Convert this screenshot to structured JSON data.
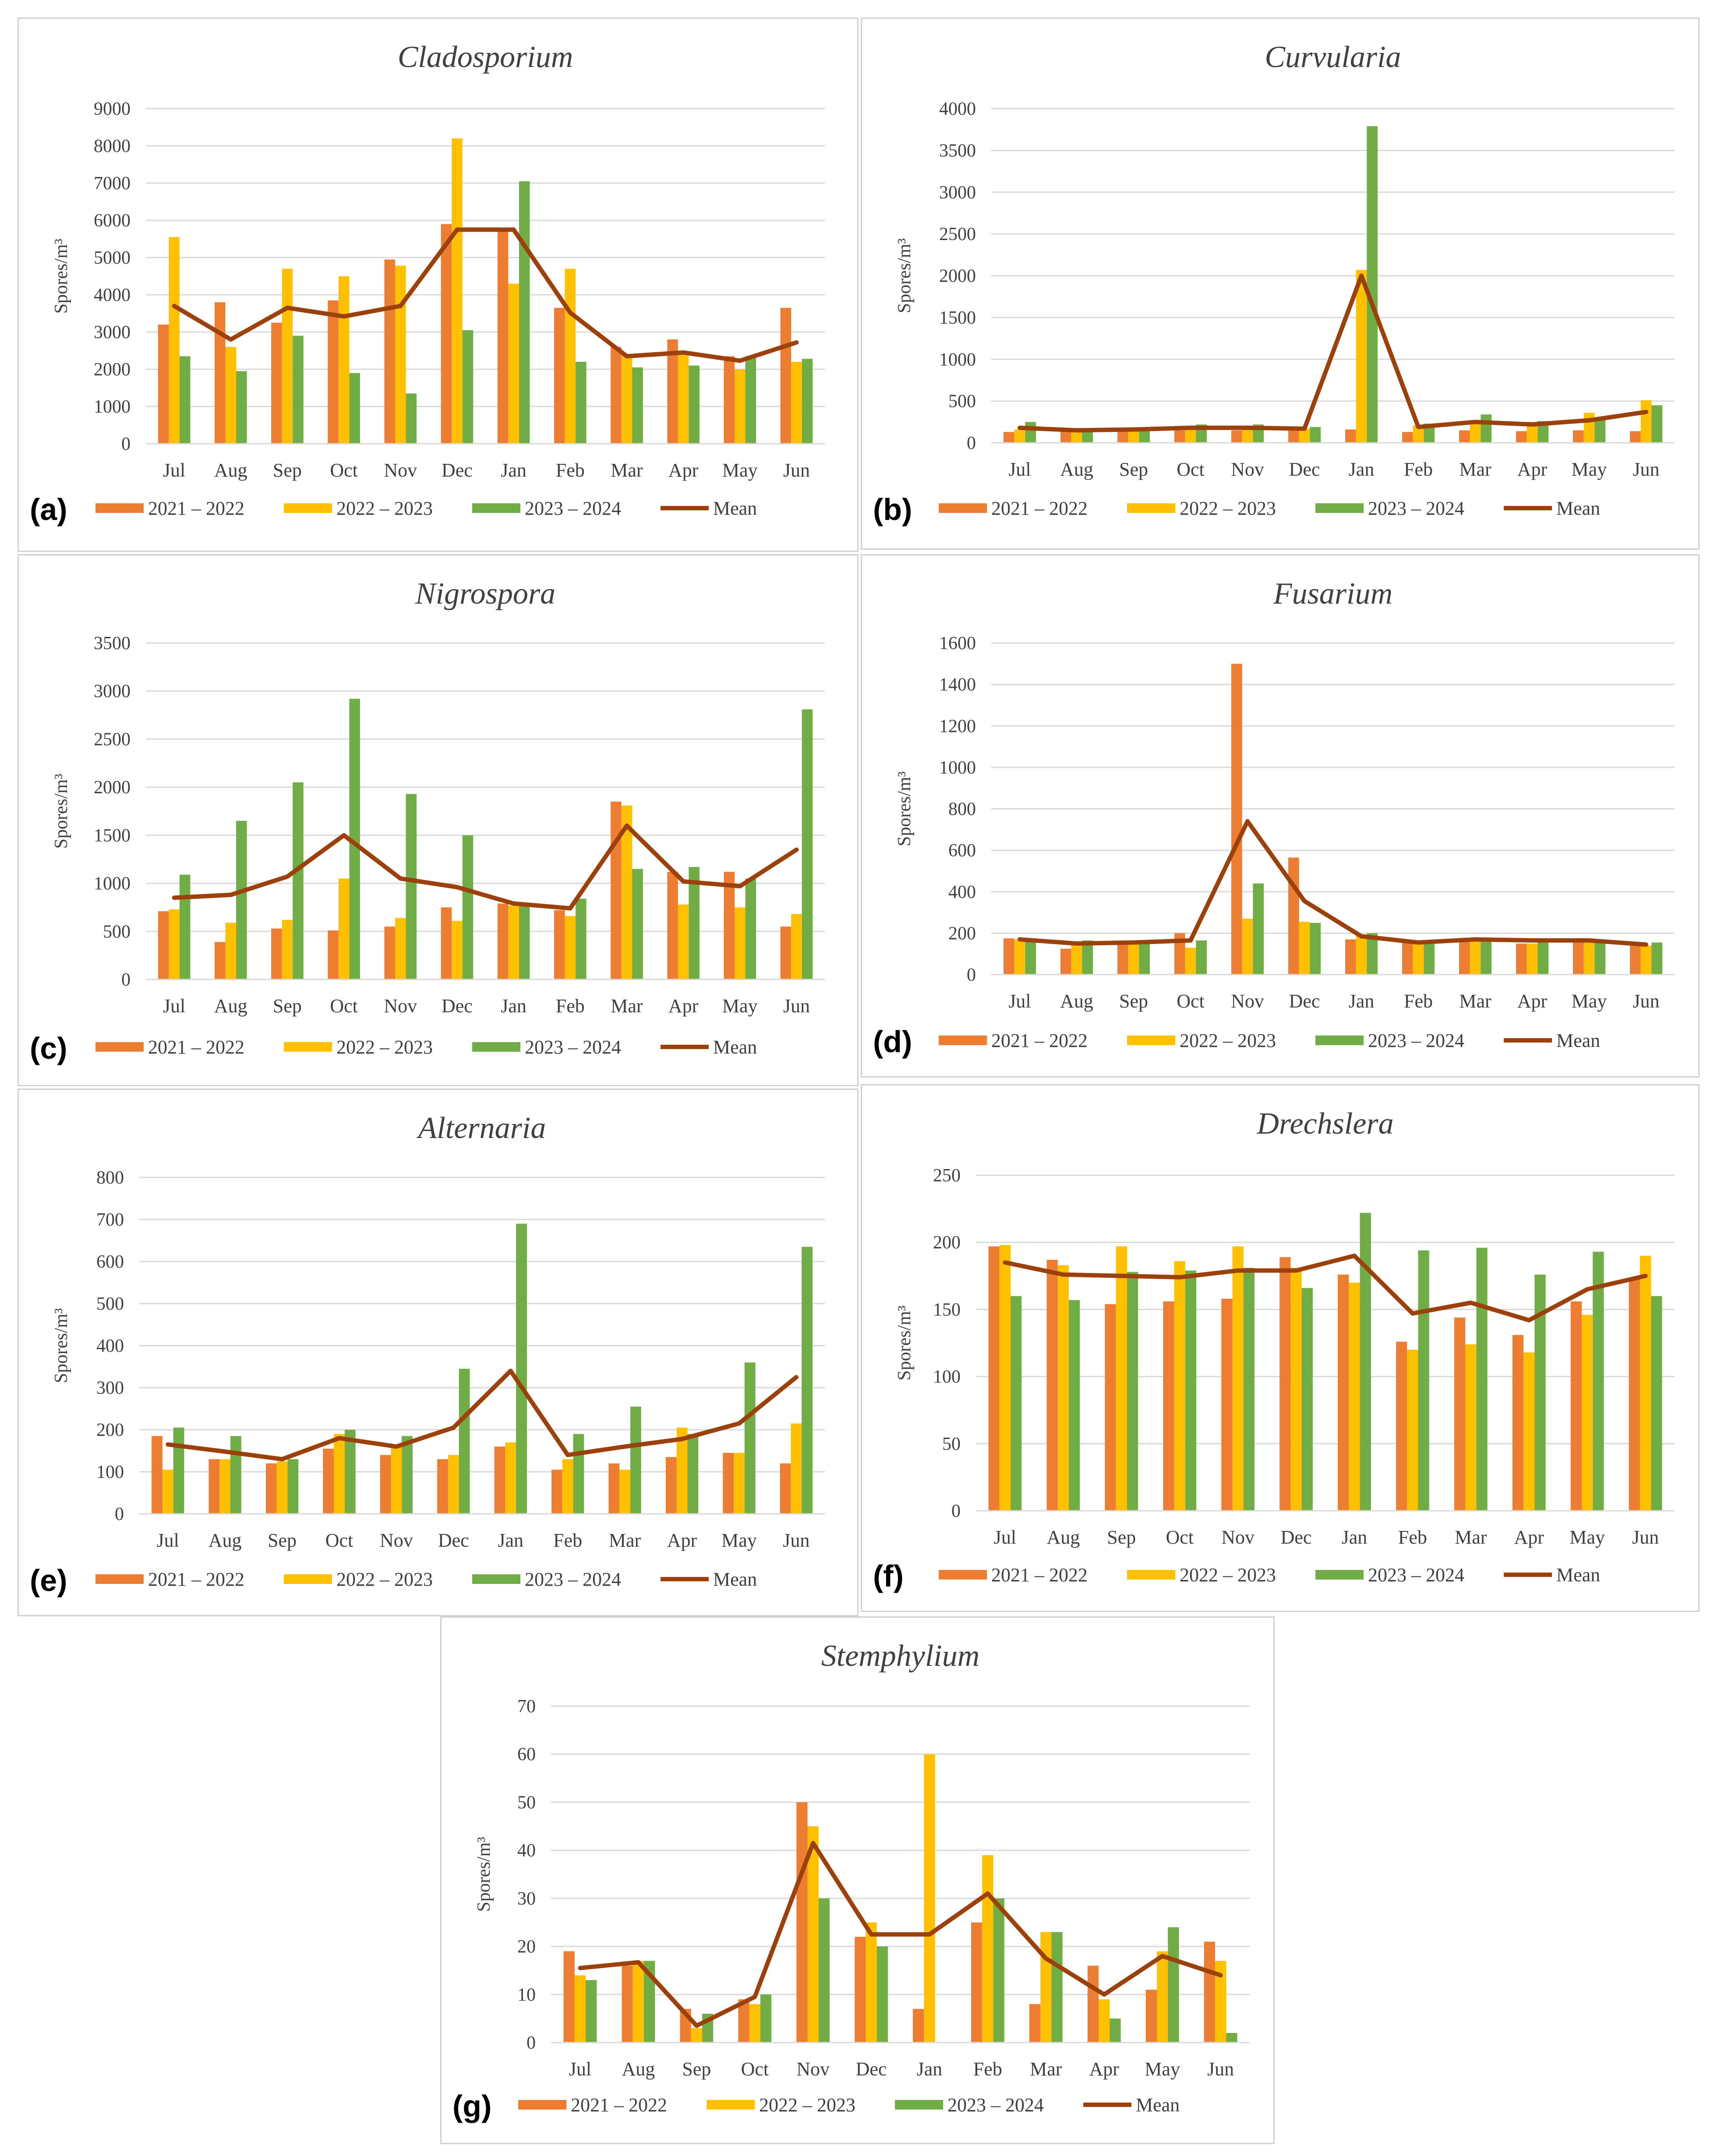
{
  "legend": {
    "series": [
      {
        "label": "2021 – 2022",
        "color": "#ED7D31"
      },
      {
        "label": "2022 – 2023",
        "color": "#FFC000"
      },
      {
        "label": "2023 – 2024",
        "color": "#70AD47"
      }
    ],
    "mean": {
      "label": "Mean",
      "color": "#9C400C"
    }
  },
  "chart_data": [
    {
      "id": "cladosporium",
      "letter": "(a)",
      "type": "bar",
      "title": "Cladosporium",
      "ylabel": "Spores/m³",
      "ylim": [
        0,
        9000
      ],
      "yticks": [
        0,
        1000,
        2000,
        3000,
        4000,
        5000,
        6000,
        7000,
        8000,
        9000
      ],
      "categories": [
        "Jul",
        "Aug",
        "Sep",
        "Oct",
        "Nov",
        "Dec",
        "Jan",
        "Feb",
        "Mar",
        "Apr",
        "May",
        "Jun"
      ],
      "series": [
        {
          "name": "2021 – 2022",
          "values": [
            3200,
            3800,
            3250,
            3850,
            4950,
            5900,
            5700,
            3650,
            2600,
            2800,
            2350,
            3650
          ]
        },
        {
          "name": "2022 – 2023",
          "values": [
            5550,
            2600,
            4700,
            4500,
            4780,
            8200,
            4300,
            4700,
            2400,
            2450,
            2000,
            2200
          ]
        },
        {
          "name": "2023 – 2024",
          "values": [
            2350,
            1950,
            2900,
            1900,
            1350,
            3050,
            7050,
            2200,
            2050,
            2100,
            2350,
            2280
          ]
        },
        {
          "name": "Mean",
          "type": "line",
          "values": [
            3700,
            2800,
            3650,
            3420,
            3700,
            5750,
            5750,
            3520,
            2350,
            2450,
            2230,
            2720
          ]
        }
      ],
      "grid": true,
      "legend": "bottom"
    },
    {
      "id": "curvularia",
      "letter": "(b)",
      "type": "bar",
      "title": "Curvularia",
      "ylabel": "Spores/m³",
      "ylim": [
        0,
        4000
      ],
      "yticks": [
        0,
        500,
        1000,
        1500,
        2000,
        2500,
        3000,
        3500,
        4000
      ],
      "categories": [
        "Jul",
        "Aug",
        "Sep",
        "Oct",
        "Nov",
        "Dec",
        "Jan",
        "Feb",
        "Mar",
        "Apr",
        "May",
        "Jun"
      ],
      "series": [
        {
          "name": "2021 – 2022",
          "values": [
            130,
            140,
            140,
            150,
            150,
            150,
            160,
            130,
            150,
            140,
            150,
            140
          ]
        },
        {
          "name": "2022 – 2023",
          "values": [
            160,
            150,
            160,
            170,
            180,
            170,
            2070,
            210,
            260,
            250,
            360,
            510
          ]
        },
        {
          "name": "2023 – 2024",
          "values": [
            250,
            160,
            180,
            220,
            220,
            190,
            3790,
            230,
            340,
            260,
            300,
            450
          ]
        },
        {
          "name": "Mean",
          "type": "line",
          "values": [
            180,
            150,
            160,
            180,
            180,
            170,
            2000,
            190,
            250,
            220,
            270,
            370
          ]
        }
      ],
      "grid": true,
      "legend": "bottom"
    },
    {
      "id": "nigrospora",
      "letter": "(c)",
      "type": "bar",
      "title": "Nigrospora",
      "ylabel": "Spores/m³",
      "ylim": [
        0,
        3500
      ],
      "yticks": [
        0,
        500,
        1000,
        1500,
        2000,
        2500,
        3000,
        3500
      ],
      "categories": [
        "Jul",
        "Aug",
        "Sep",
        "Oct",
        "Nov",
        "Dec",
        "Jan",
        "Feb",
        "Mar",
        "Apr",
        "May",
        "Jun"
      ],
      "series": [
        {
          "name": "2021 – 2022",
          "values": [
            710,
            390,
            530,
            510,
            550,
            750,
            790,
            720,
            1850,
            1120,
            1120,
            550
          ]
        },
        {
          "name": "2022 – 2023",
          "values": [
            730,
            590,
            620,
            1050,
            640,
            610,
            770,
            660,
            1810,
            780,
            750,
            680
          ]
        },
        {
          "name": "2023 – 2024",
          "values": [
            1090,
            1650,
            2050,
            2920,
            1930,
            1500,
            790,
            840,
            1150,
            1170,
            1050,
            2810
          ]
        },
        {
          "name": "Mean",
          "type": "line",
          "values": [
            850,
            880,
            1070,
            1500,
            1050,
            960,
            790,
            740,
            1600,
            1020,
            970,
            1350
          ]
        }
      ],
      "grid": true,
      "legend": "bottom"
    },
    {
      "id": "fusarium",
      "letter": "(d)",
      "type": "bar",
      "title": "Fusarium",
      "ylabel": "Spores/m³",
      "ylim": [
        0,
        1600
      ],
      "yticks": [
        0,
        200,
        400,
        600,
        800,
        1000,
        1200,
        1400,
        1600
      ],
      "categories": [
        "Jul",
        "Aug",
        "Sep",
        "Oct",
        "Nov",
        "Dec",
        "Jan",
        "Feb",
        "Mar",
        "Apr",
        "May",
        "Jun"
      ],
      "series": [
        {
          "name": "2021 – 2022",
          "values": [
            175,
            125,
            155,
            200,
            1500,
            565,
            170,
            155,
            170,
            150,
            175,
            150
          ]
        },
        {
          "name": "2022 – 2023",
          "values": [
            170,
            150,
            150,
            130,
            270,
            255,
            190,
            150,
            170,
            150,
            165,
            140
          ]
        },
        {
          "name": "2023 – 2024",
          "values": [
            165,
            165,
            165,
            165,
            440,
            250,
            200,
            155,
            170,
            165,
            165,
            155
          ]
        },
        {
          "name": "Mean",
          "type": "line",
          "values": [
            170,
            150,
            155,
            165,
            740,
            355,
            185,
            155,
            170,
            165,
            165,
            145
          ]
        }
      ],
      "grid": true,
      "legend": "bottom"
    },
    {
      "id": "alternaria",
      "letter": "(e)",
      "type": "bar",
      "title": "Alternaria",
      "ylabel": "Spores/m³",
      "ylim": [
        0,
        800
      ],
      "yticks": [
        0,
        100,
        200,
        300,
        400,
        500,
        600,
        700,
        800
      ],
      "categories": [
        "Jul",
        "Aug",
        "Sep",
        "Oct",
        "Nov",
        "Dec",
        "Jan",
        "Feb",
        "Mar",
        "Apr",
        "May",
        "Jun"
      ],
      "series": [
        {
          "name": "2021 – 2022",
          "values": [
            185,
            130,
            120,
            155,
            140,
            130,
            160,
            105,
            120,
            135,
            145,
            120
          ]
        },
        {
          "name": "2022 – 2023",
          "values": [
            105,
            130,
            125,
            190,
            165,
            140,
            170,
            130,
            105,
            205,
            145,
            215
          ]
        },
        {
          "name": "2023 – 2024",
          "values": [
            205,
            185,
            130,
            200,
            185,
            345,
            690,
            190,
            255,
            190,
            360,
            635
          ]
        },
        {
          "name": "Mean",
          "type": "line",
          "values": [
            165,
            148,
            130,
            180,
            160,
            205,
            340,
            140,
            160,
            178,
            215,
            325
          ]
        }
      ],
      "grid": true,
      "legend": "bottom"
    },
    {
      "id": "drechslera",
      "letter": "(f)",
      "type": "bar",
      "title": "Drechslera",
      "ylabel": "Spores/m³",
      "ylim": [
        0,
        250
      ],
      "yticks": [
        0,
        50,
        100,
        150,
        200,
        250
      ],
      "categories": [
        "Jul",
        "Aug",
        "Sep",
        "Oct",
        "Nov",
        "Dec",
        "Jan",
        "Feb",
        "Mar",
        "Apr",
        "May",
        "Jun"
      ],
      "series": [
        {
          "name": "2021 – 2022",
          "values": [
            197,
            187,
            154,
            156,
            158,
            189,
            176,
            126,
            144,
            131,
            156,
            173
          ]
        },
        {
          "name": "2022 – 2023",
          "values": [
            198,
            183,
            197,
            186,
            197,
            181,
            170,
            120,
            124,
            118,
            146,
            190
          ]
        },
        {
          "name": "2023 – 2024",
          "values": [
            160,
            157,
            178,
            179,
            181,
            166,
            222,
            194,
            196,
            176,
            193,
            160
          ]
        },
        {
          "name": "Mean",
          "type": "line",
          "values": [
            185,
            176,
            175,
            174,
            179,
            179,
            190,
            147,
            155,
            142,
            165,
            175
          ]
        }
      ],
      "grid": true,
      "legend": "bottom"
    },
    {
      "id": "stemphylium",
      "letter": "(g)",
      "type": "bar",
      "title": "Stemphylium",
      "ylabel": "Spores/m³",
      "ylim": [
        0,
        70
      ],
      "yticks": [
        0,
        10,
        20,
        30,
        40,
        50,
        60,
        70
      ],
      "categories": [
        "Jul",
        "Aug",
        "Sep",
        "Oct",
        "Nov",
        "Dec",
        "Jan",
        "Feb",
        "Mar",
        "Apr",
        "May",
        "Jun"
      ],
      "series": [
        {
          "name": "2021 – 2022",
          "values": [
            19,
            16,
            7,
            9,
            50,
            22,
            7,
            25,
            8,
            16,
            11,
            21
          ]
        },
        {
          "name": "2022 – 2023",
          "values": [
            14,
            17,
            3,
            8,
            45,
            25,
            60,
            39,
            23,
            9,
            19,
            17
          ]
        },
        {
          "name": "2023 – 2024",
          "values": [
            13,
            17,
            6,
            10,
            30,
            20,
            0,
            30,
            23,
            5,
            24,
            2
          ]
        },
        {
          "name": "Mean",
          "type": "line",
          "values": [
            15.5,
            16.7,
            3.5,
            9.5,
            41.5,
            22.5,
            22.5,
            31,
            17.5,
            10,
            18,
            14
          ]
        }
      ],
      "grid": true,
      "legend": "bottom"
    }
  ]
}
